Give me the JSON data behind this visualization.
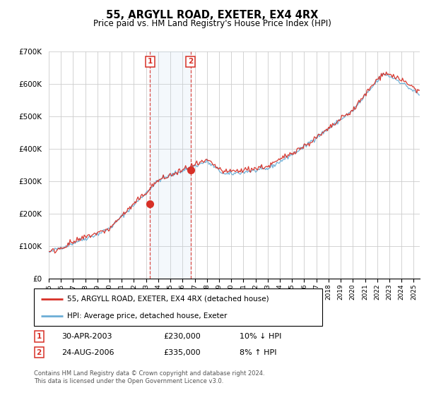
{
  "title": "55, ARGYLL ROAD, EXETER, EX4 4RX",
  "subtitle": "Price paid vs. HM Land Registry's House Price Index (HPI)",
  "legend_line1": "55, ARGYLL ROAD, EXETER, EX4 4RX (detached house)",
  "legend_line2": "HPI: Average price, detached house, Exeter",
  "transaction1_label": "1",
  "transaction1_date": "30-APR-2003",
  "transaction1_price": "£230,000",
  "transaction1_hpi": "10% ↓ HPI",
  "transaction2_label": "2",
  "transaction2_date": "24-AUG-2006",
  "transaction2_price": "£335,000",
  "transaction2_hpi": "8% ↑ HPI",
  "footer": "Contains HM Land Registry data © Crown copyright and database right 2024.\nThis data is licensed under the Open Government Licence v3.0.",
  "hpi_color": "#6baed6",
  "price_color": "#d73027",
  "vline_color": "#d73027",
  "shade_color": "#c6dbef",
  "ylim_min": 0,
  "ylim_max": 700000,
  "start_year": 1995,
  "end_year": 2025,
  "transaction1_year": 2003.33,
  "transaction2_year": 2006.65,
  "transaction1_price_val": 230000,
  "transaction2_price_val": 335000
}
